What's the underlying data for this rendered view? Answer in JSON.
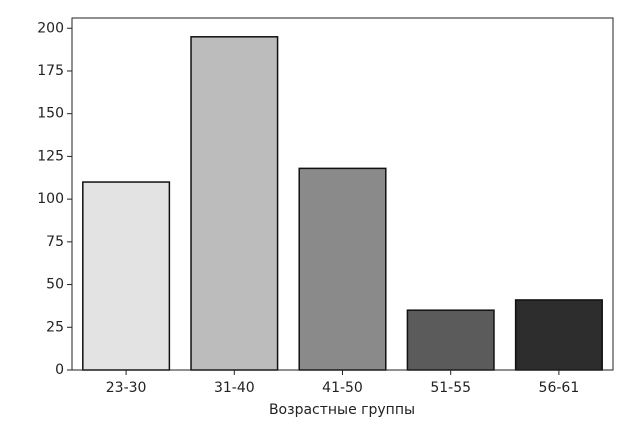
{
  "chart_data": {
    "type": "bar",
    "x_label": "Возрастные группы",
    "categories": [
      "23-30",
      "31-40",
      "41-50",
      "51-55",
      "56-61"
    ],
    "values": [
      110,
      195,
      118,
      35,
      41
    ],
    "colors": [
      "#e3e3e3",
      "#bcbcbc",
      "#8a8a8a",
      "#5b5b5b",
      "#2d2d2d"
    ],
    "ylim": [
      0,
      206
    ],
    "yticks": [
      0,
      25,
      50,
      75,
      100,
      125,
      150,
      175,
      200
    ]
  }
}
